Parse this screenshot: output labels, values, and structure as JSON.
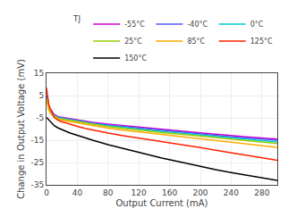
{
  "chart_data": {
    "type": "line",
    "xlabel": "Output Current (mA)",
    "ylabel": "Change in Output Voltage (mV)",
    "xlim": [
      0,
      300
    ],
    "ylim": [
      -35,
      15
    ],
    "xticks": [
      0,
      40,
      80,
      120,
      160,
      200,
      240,
      280
    ],
    "yticks": [
      -35,
      -25,
      -15,
      -5,
      5,
      15
    ],
    "grid": true,
    "legend": "upper right",
    "legend_title": "TJ",
    "x": [
      0,
      0.5,
      1,
      2,
      3,
      5,
      8,
      10,
      15,
      20,
      25,
      30,
      40,
      50,
      60,
      80,
      100,
      120,
      150,
      180,
      200,
      220,
      240,
      260,
      280,
      300
    ],
    "series": [
      {
        "name": "-55°C",
        "color": "#cc00cc",
        "values": [
          5,
          4.5,
          4,
          2,
          0,
          -1,
          -2.5,
          -3.5,
          -4.5,
          -4.8,
          -5.0,
          -5.2,
          -5.8,
          -6.5,
          -7.0,
          -7.8,
          -8.5,
          -9.2,
          -10.2,
          -11.0,
          -11.7,
          -12.3,
          -13.0,
          -13.5,
          -14.0,
          -14.5
        ]
      },
      {
        "name": "-40°C",
        "color": "#5555ff",
        "values": [
          4.5,
          4.0,
          3.5,
          1.5,
          -0.2,
          -1.2,
          -2.8,
          -3.8,
          -4.7,
          -5.0,
          -5.2,
          -5.5,
          -6.0,
          -6.8,
          -7.3,
          -8.2,
          -8.9,
          -9.6,
          -10.6,
          -11.5,
          -12.2,
          -12.8,
          -13.5,
          -14.0,
          -14.5,
          -15.0
        ]
      },
      {
        "name": "0°C",
        "color": "#00cccc",
        "values": [
          4.0,
          3.5,
          3.0,
          1.0,
          -0.8,
          -1.8,
          -3.2,
          -4.0,
          -5.0,
          -5.3,
          -5.5,
          -5.8,
          -6.4,
          -7.1,
          -7.6,
          -8.5,
          -9.3,
          -10.0,
          -11.1,
          -12.0,
          -12.7,
          -13.4,
          -14.1,
          -14.7,
          -15.2,
          -15.8
        ]
      },
      {
        "name": "25°C",
        "color": "#99cc00",
        "values": [
          3.5,
          3.0,
          2.5,
          0.5,
          -1.2,
          -2.2,
          -3.5,
          -4.3,
          -5.2,
          -5.5,
          -5.8,
          -6.1,
          -6.7,
          -7.4,
          -8.0,
          -8.9,
          -9.7,
          -10.5,
          -11.6,
          -12.5,
          -13.2,
          -14.0,
          -14.7,
          -15.3,
          -16.0,
          -16.5
        ]
      },
      {
        "name": "85°C",
        "color": "#ffaa00",
        "values": [
          3.0,
          2.5,
          2.0,
          0.0,
          -1.8,
          -2.8,
          -4.0,
          -4.8,
          -5.7,
          -6.0,
          -6.3,
          -6.7,
          -7.3,
          -8.0,
          -8.6,
          -9.6,
          -10.5,
          -11.3,
          -12.5,
          -13.5,
          -14.3,
          -15.1,
          -15.9,
          -16.7,
          -17.5,
          -18.2
        ]
      },
      {
        "name": "125°C",
        "color": "#ff2200",
        "values": [
          8.5,
          7.5,
          6.0,
          3.5,
          1.0,
          -1.0,
          -3.5,
          -4.8,
          -6.0,
          -6.8,
          -7.2,
          -7.8,
          -8.8,
          -9.7,
          -10.5,
          -11.8,
          -13.0,
          -14.0,
          -15.7,
          -17.2,
          -18.3,
          -19.5,
          -20.7,
          -21.7,
          -22.8,
          -24.0
        ]
      },
      {
        "name": "150°C",
        "color": "#000000",
        "values": [
          -4.8,
          -5.0,
          -5.2,
          -5.5,
          -6.0,
          -6.8,
          -7.8,
          -8.5,
          -9.5,
          -10.3,
          -11.0,
          -11.7,
          -12.8,
          -14.0,
          -15.0,
          -17.0,
          -18.8,
          -20.5,
          -23.0,
          -25.2,
          -26.8,
          -28.2,
          -29.5,
          -30.7,
          -31.8,
          -33.0
        ]
      }
    ]
  }
}
